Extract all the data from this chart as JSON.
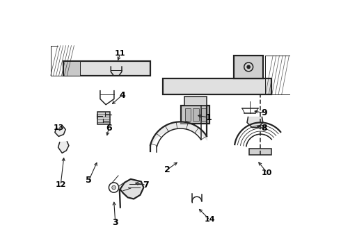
{
  "background_color": "#ffffff",
  "line_color": "#222222",
  "figsize": [
    4.9,
    3.6
  ],
  "dpi": 100,
  "callout_positions": {
    "1": [
      0.655,
      0.53,
      0.6,
      0.54
    ],
    "2": [
      0.487,
      0.32,
      0.535,
      0.355
    ],
    "3": [
      0.278,
      0.108,
      0.272,
      0.2
    ],
    "4": [
      0.305,
      0.62,
      0.258,
      0.578
    ],
    "5": [
      0.172,
      0.278,
      0.208,
      0.358
    ],
    "6": [
      0.252,
      0.488,
      0.242,
      0.448
    ],
    "7": [
      0.402,
      0.258,
      0.348,
      0.268
    ],
    "8": [
      0.878,
      0.488,
      0.838,
      0.498
    ],
    "9": [
      0.878,
      0.548,
      0.828,
      0.558
    ],
    "10": [
      0.888,
      0.308,
      0.848,
      0.358
    ],
    "11": [
      0.298,
      0.788,
      0.285,
      0.752
    ],
    "12": [
      0.058,
      0.258,
      0.072,
      0.378
    ],
    "13": [
      0.05,
      0.488,
      0.06,
      0.468
    ],
    "14": [
      0.658,
      0.118,
      0.608,
      0.168
    ]
  }
}
